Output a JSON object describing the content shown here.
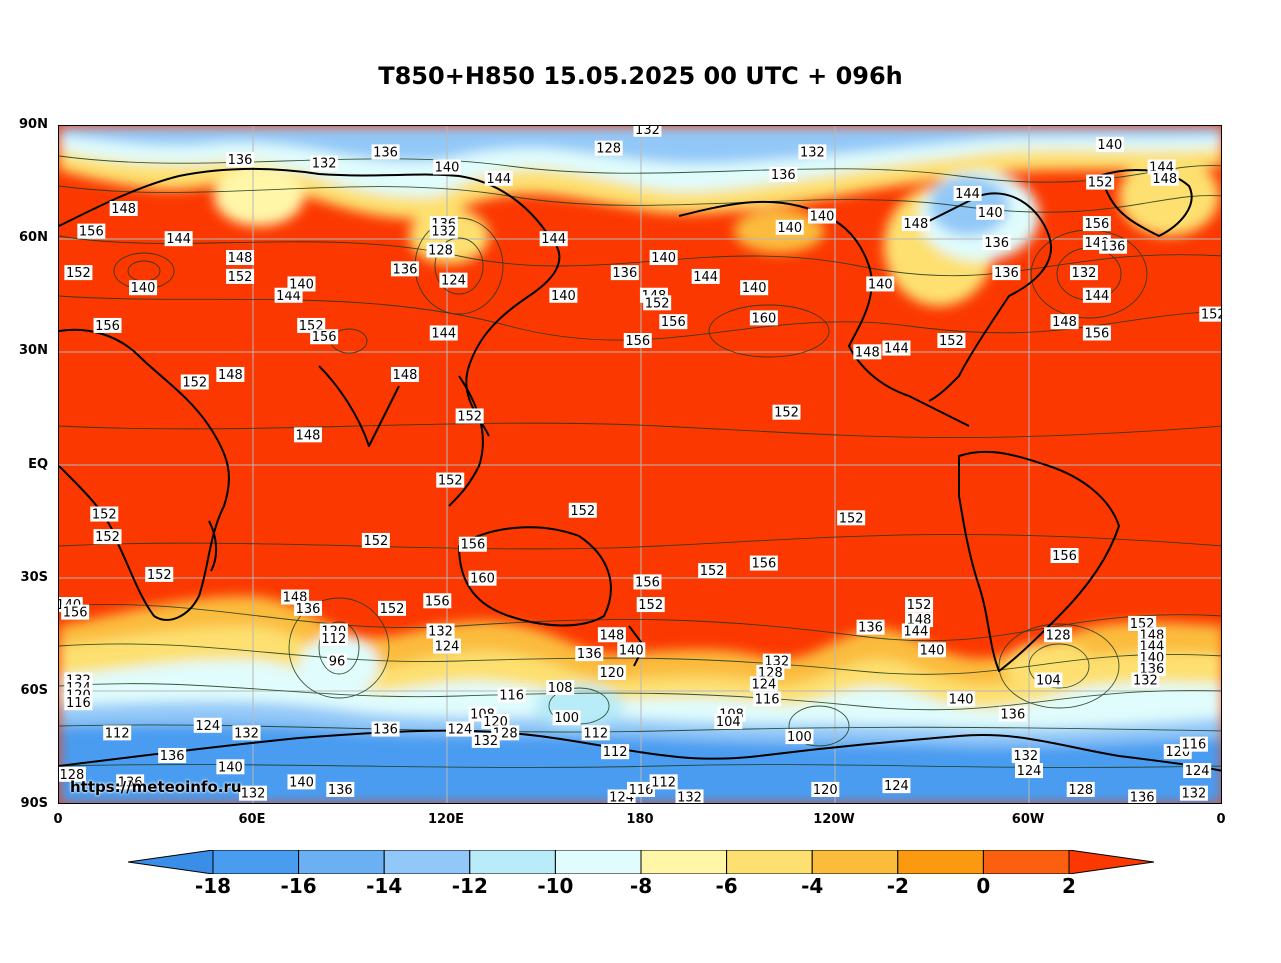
{
  "title": "T850+H850 15.05.2025 00 UTC + 096h",
  "credit": "https://meteoinfo.ru",
  "axes": {
    "lat_labels": [
      "90N",
      "60N",
      "30N",
      "EQ",
      "30S",
      "60S",
      "90S"
    ],
    "lon_labels": [
      "0",
      "60E",
      "120E",
      "180",
      "120W",
      "60W",
      "0"
    ]
  },
  "colorbar": {
    "ticks": [
      "-18",
      "-16",
      "-14",
      "-12",
      "-10",
      "-8",
      "-6",
      "-4",
      "-2",
      "0",
      "2"
    ],
    "colors": [
      "#3a8ee8",
      "#4a9cf0",
      "#6cb0f4",
      "#92c8f8",
      "#b8ecf8",
      "#e0fcfc",
      "#fff6a8",
      "#fde070",
      "#fbbc3c",
      "#fb9a10",
      "#fb6010",
      "#fb3800"
    ]
  },
  "contour_labels": [
    {
      "t": "132",
      "lon": 182,
      "lat": 89
    },
    {
      "t": "136",
      "lon": 56,
      "lat": 81
    },
    {
      "t": "132",
      "lon": 82,
      "lat": 80
    },
    {
      "t": "136",
      "lon": 101,
      "lat": 83
    },
    {
      "t": "140",
      "lon": 120,
      "lat": 79
    },
    {
      "t": "128",
      "lon": 170,
      "lat": 84
    },
    {
      "t": "132",
      "lon": 233,
      "lat": 83
    },
    {
      "t": "136",
      "lon": 224,
      "lat": 77
    },
    {
      "t": "140",
      "lon": 325,
      "lat": 85
    },
    {
      "t": "144",
      "lon": 341,
      "lat": 79
    },
    {
      "t": "148",
      "lon": 342,
      "lat": 76
    },
    {
      "t": "148",
      "lon": 20,
      "lat": 68
    },
    {
      "t": "156",
      "lon": 10,
      "lat": 62
    },
    {
      "t": "144",
      "lon": 37,
      "lat": 60
    },
    {
      "t": "144",
      "lon": 136,
      "lat": 76
    },
    {
      "t": "136",
      "lon": 119,
      "lat": 64
    },
    {
      "t": "132",
      "lon": 119,
      "lat": 62
    },
    {
      "t": "128",
      "lon": 118,
      "lat": 57
    },
    {
      "t": "124",
      "lon": 122,
      "lat": 49
    },
    {
      "t": "136",
      "lon": 107,
      "lat": 52
    },
    {
      "t": "144",
      "lon": 153,
      "lat": 60
    },
    {
      "t": "136",
      "lon": 175,
      "lat": 51
    },
    {
      "t": "140",
      "lon": 187,
      "lat": 55
    },
    {
      "t": "144",
      "lon": 200,
      "lat": 50
    },
    {
      "t": "140",
      "lon": 226,
      "lat": 63
    },
    {
      "t": "140",
      "lon": 236,
      "lat": 66
    },
    {
      "t": "148",
      "lon": 265,
      "lat": 64
    },
    {
      "t": "144",
      "lon": 281,
      "lat": 72
    },
    {
      "t": "140",
      "lon": 288,
      "lat": 67
    },
    {
      "t": "136",
      "lon": 290,
      "lat": 59
    },
    {
      "t": "136",
      "lon": 293,
      "lat": 51
    },
    {
      "t": "152",
      "lon": 322,
      "lat": 75
    },
    {
      "t": "156",
      "lon": 321,
      "lat": 64
    },
    {
      "t": "140",
      "lon": 321,
      "lat": 59
    },
    {
      "t": "136",
      "lon": 326,
      "lat": 58
    },
    {
      "t": "132",
      "lon": 317,
      "lat": 51
    },
    {
      "t": "144",
      "lon": 321,
      "lat": 45
    },
    {
      "t": "148",
      "lon": 311,
      "lat": 38
    },
    {
      "t": "156",
      "lon": 321,
      "lat": 35
    },
    {
      "t": "152",
      "lon": 357,
      "lat": 40
    },
    {
      "t": "152",
      "lon": 6,
      "lat": 51
    },
    {
      "t": "140",
      "lon": 26,
      "lat": 47
    },
    {
      "t": "148",
      "lon": 56,
      "lat": 55
    },
    {
      "t": "152",
      "lon": 56,
      "lat": 50
    },
    {
      "t": "144",
      "lon": 71,
      "lat": 45
    },
    {
      "t": "140",
      "lon": 75,
      "lat": 48
    },
    {
      "t": "156",
      "lon": 15,
      "lat": 37
    },
    {
      "t": "152",
      "lon": 78,
      "lat": 37
    },
    {
      "t": "156",
      "lon": 82,
      "lat": 34
    },
    {
      "t": "140",
      "lon": 156,
      "lat": 45
    },
    {
      "t": "148",
      "lon": 184,
      "lat": 45
    },
    {
      "t": "152",
      "lon": 185,
      "lat": 43
    },
    {
      "t": "156",
      "lon": 190,
      "lat": 38
    },
    {
      "t": "140",
      "lon": 215,
      "lat": 47
    },
    {
      "t": "160",
      "lon": 218,
      "lat": 39
    },
    {
      "t": "140",
      "lon": 254,
      "lat": 48
    },
    {
      "t": "144",
      "lon": 259,
      "lat": 31
    },
    {
      "t": "148",
      "lon": 250,
      "lat": 30
    },
    {
      "t": "152",
      "lon": 276,
      "lat": 33
    },
    {
      "t": "144",
      "lon": 119,
      "lat": 35
    },
    {
      "t": "156",
      "lon": 179,
      "lat": 33
    },
    {
      "t": "148",
      "lon": 53,
      "lat": 24
    },
    {
      "t": "152",
      "lon": 42,
      "lat": 22
    },
    {
      "t": "148",
      "lon": 107,
      "lat": 24
    },
    {
      "t": "152",
      "lon": 127,
      "lat": 13
    },
    {
      "t": "152",
      "lon": 225,
      "lat": 14
    },
    {
      "t": "148",
      "lon": 77,
      "lat": 8
    },
    {
      "t": "152",
      "lon": 121,
      "lat": -4
    },
    {
      "t": "152",
      "lon": 14,
      "lat": -13
    },
    {
      "t": "152",
      "lon": 15,
      "lat": -19
    },
    {
      "t": "152",
      "lon": 98,
      "lat": -20
    },
    {
      "t": "156",
      "lon": 128,
      "lat": -21
    },
    {
      "t": "152",
      "lon": 162,
      "lat": -12
    },
    {
      "t": "152",
      "lon": 245,
      "lat": -14
    },
    {
      "t": "160",
      "lon": 131,
      "lat": -30
    },
    {
      "t": "156",
      "lon": 182,
      "lat": -31
    },
    {
      "t": "152",
      "lon": 202,
      "lat": -28
    },
    {
      "t": "156",
      "lon": 218,
      "lat": -26
    },
    {
      "t": "156",
      "lon": 311,
      "lat": -24
    },
    {
      "t": "152",
      "lon": 31,
      "lat": -29
    },
    {
      "t": "140",
      "lon": 3,
      "lat": -37
    },
    {
      "t": "156",
      "lon": 5,
      "lat": -39
    },
    {
      "t": "148",
      "lon": 73,
      "lat": -35
    },
    {
      "t": "136",
      "lon": 77,
      "lat": -38
    },
    {
      "t": "152",
      "lon": 103,
      "lat": -38
    },
    {
      "t": "156",
      "lon": 117,
      "lat": -36
    },
    {
      "t": "152",
      "lon": 183,
      "lat": -37
    },
    {
      "t": "120",
      "lon": 85,
      "lat": -44
    },
    {
      "t": "112",
      "lon": 85,
      "lat": -46
    },
    {
      "t": "96",
      "lon": 86,
      "lat": -52
    },
    {
      "t": "132",
      "lon": 118,
      "lat": -44
    },
    {
      "t": "124",
      "lon": 120,
      "lat": -48
    },
    {
      "t": "148",
      "lon": 171,
      "lat": -45
    },
    {
      "t": "140",
      "lon": 177,
      "lat": -49
    },
    {
      "t": "136",
      "lon": 164,
      "lat": -50
    },
    {
      "t": "120",
      "lon": 171,
      "lat": -55
    },
    {
      "t": "132",
      "lon": 222,
      "lat": -52
    },
    {
      "t": "128",
      "lon": 220,
      "lat": -55
    },
    {
      "t": "124",
      "lon": 218,
      "lat": -58
    },
    {
      "t": "116",
      "lon": 219,
      "lat": -62
    },
    {
      "t": "136",
      "lon": 251,
      "lat": -43
    },
    {
      "t": "152",
      "lon": 266,
      "lat": -37
    },
    {
      "t": "148",
      "lon": 266,
      "lat": -41
    },
    {
      "t": "144",
      "lon": 265,
      "lat": -44
    },
    {
      "t": "140",
      "lon": 270,
      "lat": -49
    },
    {
      "t": "140",
      "lon": 279,
      "lat": -62
    },
    {
      "t": "128",
      "lon": 309,
      "lat": -45
    },
    {
      "t": "104",
      "lon": 306,
      "lat": -57
    },
    {
      "t": "152",
      "lon": 335,
      "lat": -42
    },
    {
      "t": "148",
      "lon": 338,
      "lat": -45
    },
    {
      "t": "144",
      "lon": 338,
      "lat": -48
    },
    {
      "t": "140",
      "lon": 338,
      "lat": -51
    },
    {
      "t": "136",
      "lon": 338,
      "lat": -54
    },
    {
      "t": "132",
      "lon": 336,
      "lat": -57
    },
    {
      "t": "132",
      "lon": 6,
      "lat": -57
    },
    {
      "t": "124",
      "lon": 6,
      "lat": -59
    },
    {
      "t": "120",
      "lon": 6,
      "lat": -61
    },
    {
      "t": "116",
      "lon": 6,
      "lat": -63
    },
    {
      "t": "108",
      "lon": 155,
      "lat": -59
    },
    {
      "t": "100",
      "lon": 157,
      "lat": -67
    },
    {
      "t": "116",
      "lon": 140,
      "lat": -61
    },
    {
      "t": "108",
      "lon": 131,
      "lat": -66
    },
    {
      "t": "120",
      "lon": 135,
      "lat": -68
    },
    {
      "t": "124",
      "lon": 124,
      "lat": -70
    },
    {
      "t": "128",
      "lon": 138,
      "lat": -71
    },
    {
      "t": "132",
      "lon": 132,
      "lat": -73
    },
    {
      "t": "112",
      "lon": 172,
      "lat": -76
    },
    {
      "t": "112",
      "lon": 166,
      "lat": -71
    },
    {
      "t": "108",
      "lon": 208,
      "lat": -66
    },
    {
      "t": "104",
      "lon": 207,
      "lat": -68
    },
    {
      "t": "100",
      "lon": 229,
      "lat": -72
    },
    {
      "t": "124",
      "lon": 46,
      "lat": -69
    },
    {
      "t": "132",
      "lon": 58,
      "lat": -71
    },
    {
      "t": "136",
      "lon": 101,
      "lat": -70
    },
    {
      "t": "136",
      "lon": 35,
      "lat": -77
    },
    {
      "t": "140",
      "lon": 53,
      "lat": -80
    },
    {
      "t": "128",
      "lon": 4,
      "lat": -82
    },
    {
      "t": "136",
      "lon": 22,
      "lat": -84
    },
    {
      "t": "140",
      "lon": 75,
      "lat": -84
    },
    {
      "t": "136",
      "lon": 87,
      "lat": -86
    },
    {
      "t": "132",
      "lon": 60,
      "lat": -87
    },
    {
      "t": "112",
      "lon": 18,
      "lat": -71
    },
    {
      "t": "124",
      "lon": 174,
      "lat": -88
    },
    {
      "t": "116",
      "lon": 180,
      "lat": -86
    },
    {
      "t": "112",
      "lon": 187,
      "lat": -84
    },
    {
      "t": "132",
      "lon": 195,
      "lat": -88
    },
    {
      "t": "120",
      "lon": 237,
      "lat": -86
    },
    {
      "t": "124",
      "lon": 259,
      "lat": -85
    },
    {
      "t": "132",
      "lon": 299,
      "lat": -77
    },
    {
      "t": "124",
      "lon": 300,
      "lat": -81
    },
    {
      "t": "128",
      "lon": 316,
      "lat": -86
    },
    {
      "t": "136",
      "lon": 335,
      "lat": -88
    },
    {
      "t": "132",
      "lon": 351,
      "lat": -87
    },
    {
      "t": "120",
      "lon": 346,
      "lat": -76
    },
    {
      "t": "116",
      "lon": 351,
      "lat": -74
    },
    {
      "t": "124",
      "lon": 352,
      "lat": -81
    },
    {
      "t": "136",
      "lon": 295,
      "lat": -66
    }
  ]
}
